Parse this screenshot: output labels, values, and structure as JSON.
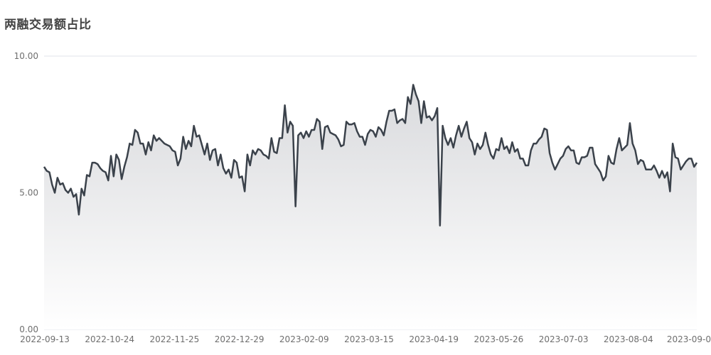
{
  "chart_data": {
    "type": "area",
    "title": "两融交易额占比",
    "xlabel": "",
    "ylabel": "",
    "ylim": [
      0,
      10
    ],
    "y_ticks": [
      "0.00",
      "5.00",
      "10.00"
    ],
    "x_tick_labels": [
      "2022-09-13",
      "2022-10-24",
      "2022-11-25",
      "2022-12-29",
      "2023-02-09",
      "2023-03-15",
      "2023-04-19",
      "2023-05-26",
      "2023-07-03",
      "2023-08-04",
      "2023-09-0"
    ],
    "x_range": [
      "2022-09-13",
      "2023-09-07"
    ],
    "grid": true,
    "colors": {
      "line": "#3b424b",
      "fill_top": "#d9dadd",
      "fill_bottom": "#ffffff",
      "grid": "#e0e3ea"
    },
    "series": [
      {
        "values": [
          5.95,
          5.8,
          5.75,
          5.3,
          5.0,
          5.55,
          5.3,
          5.35,
          5.1,
          5.0,
          5.15,
          4.85,
          4.95,
          4.2,
          5.15,
          4.9,
          5.65,
          5.6,
          6.1,
          6.1,
          6.05,
          5.9,
          5.8,
          5.75,
          5.45,
          6.35,
          5.6,
          6.4,
          6.2,
          5.5,
          5.95,
          6.3,
          6.8,
          6.75,
          7.3,
          7.2,
          6.8,
          6.8,
          6.4,
          6.85,
          6.55,
          7.1,
          6.9,
          7.0,
          6.9,
          6.8,
          6.75,
          6.7,
          6.55,
          6.5,
          6.0,
          6.25,
          7.05,
          6.6,
          6.9,
          6.7,
          7.45,
          7.05,
          7.1,
          6.75,
          6.4,
          6.8,
          6.2,
          6.55,
          6.6,
          6.0,
          6.4,
          5.9,
          5.7,
          5.85,
          5.55,
          6.2,
          6.1,
          5.55,
          5.6,
          5.05,
          6.4,
          6.0,
          6.55,
          6.4,
          6.6,
          6.55,
          6.4,
          6.35,
          6.25,
          7.0,
          6.5,
          6.45,
          7.0,
          7.0,
          8.2,
          7.2,
          7.6,
          7.45,
          4.5,
          7.1,
          7.2,
          7.0,
          7.25,
          7.05,
          7.3,
          7.3,
          7.7,
          7.6,
          6.6,
          7.4,
          7.45,
          7.2,
          7.15,
          7.1,
          6.95,
          6.7,
          6.75,
          7.6,
          7.5,
          7.5,
          7.55,
          7.25,
          7.05,
          7.05,
          6.75,
          7.15,
          7.3,
          7.25,
          7.05,
          7.4,
          7.3,
          7.1,
          7.6,
          8.0,
          8.0,
          8.05,
          7.55,
          7.65,
          7.7,
          7.55,
          8.5,
          8.25,
          8.95,
          8.6,
          8.35,
          7.55,
          8.35,
          7.75,
          7.8,
          7.65,
          7.8,
          8.1,
          3.8,
          7.45,
          7.0,
          6.75,
          7.0,
          6.65,
          7.1,
          7.45,
          7.05,
          7.35,
          7.6,
          7.0,
          6.85,
          6.4,
          6.8,
          6.6,
          6.75,
          7.2,
          6.75,
          6.4,
          6.25,
          6.6,
          6.55,
          7.0,
          6.6,
          6.7,
          6.45,
          6.85,
          6.5,
          6.6,
          6.25,
          6.25,
          6.0,
          6.0,
          6.55,
          6.8,
          6.8,
          6.95,
          7.05,
          7.35,
          7.3,
          6.45,
          6.1,
          5.85,
          6.05,
          6.25,
          6.35,
          6.6,
          6.7,
          6.55,
          6.55,
          6.1,
          6.05,
          6.3,
          6.3,
          6.35,
          6.65,
          6.65,
          6.05,
          5.9,
          5.75,
          5.45,
          5.6,
          6.35,
          6.1,
          6.05,
          6.6,
          7.0,
          6.55,
          6.65,
          6.75,
          7.55,
          6.8,
          6.55,
          6.05,
          6.2,
          6.15,
          5.85,
          5.85,
          5.85,
          6.0,
          5.8,
          5.55,
          5.8,
          5.55,
          5.75,
          5.05,
          6.8,
          6.3,
          6.25,
          5.85,
          6.0,
          6.15,
          6.25,
          6.25,
          5.95,
          6.1
        ]
      }
    ]
  }
}
